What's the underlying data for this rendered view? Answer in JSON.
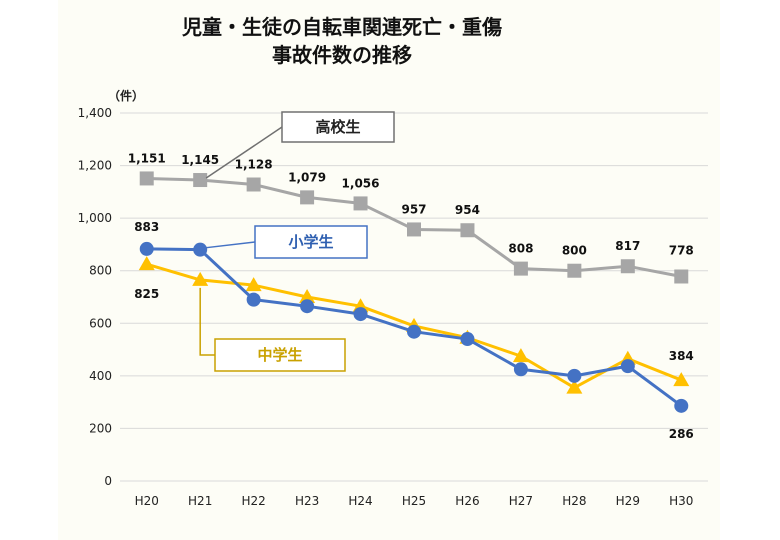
{
  "chart_data": {
    "type": "line",
    "title_lines": [
      "児童・生徒の自転車関連死亡・重傷",
      "事故件数の推移"
    ],
    "unit_label": "（件）",
    "categories": [
      "H20",
      "H21",
      "H22",
      "H23",
      "H24",
      "H25",
      "H26",
      "H27",
      "H28",
      "H29",
      "H30"
    ],
    "ylim": [
      0,
      1400
    ],
    "yticks": [
      0,
      200,
      400,
      600,
      800,
      1000,
      1200,
      1400
    ],
    "ytick_labels": [
      "0",
      "200",
      "400",
      "600",
      "800",
      "1,000",
      "1,200",
      "1,400"
    ],
    "grid": true,
    "series": [
      {
        "name": "高校生",
        "color": "#a6a6a6",
        "marker": "square",
        "values": [
          1151,
          1145,
          1128,
          1079,
          1056,
          957,
          954,
          808,
          800,
          817,
          778
        ],
        "labels": [
          "1,151",
          "1,145",
          "1,128",
          "1,079",
          "1,056",
          "957",
          "954",
          "808",
          "800",
          "817",
          "778"
        ],
        "label_indices": [
          0,
          1,
          2,
          3,
          4,
          5,
          6,
          7,
          8,
          9,
          10
        ],
        "text_color": "#222222",
        "box_border": "#707070"
      },
      {
        "name": "小学生",
        "color": "#4472c4",
        "marker": "circle",
        "values": [
          883,
          880,
          690,
          665,
          635,
          568,
          540,
          425,
          400,
          437,
          286
        ],
        "labels": [
          "883",
          "286"
        ],
        "label_indices": [
          0,
          10
        ],
        "text_color": "#2e5fb0",
        "box_border": "#4472c4"
      },
      {
        "name": "中学生",
        "color": "#ffc000",
        "marker": "triangle",
        "values": [
          825,
          765,
          745,
          700,
          665,
          590,
          545,
          475,
          355,
          465,
          384
        ],
        "labels": [
          "825",
          "384"
        ],
        "label_indices": [
          0,
          10
        ],
        "text_color": "#c9a100",
        "box_border": "#c9a100"
      }
    ]
  }
}
